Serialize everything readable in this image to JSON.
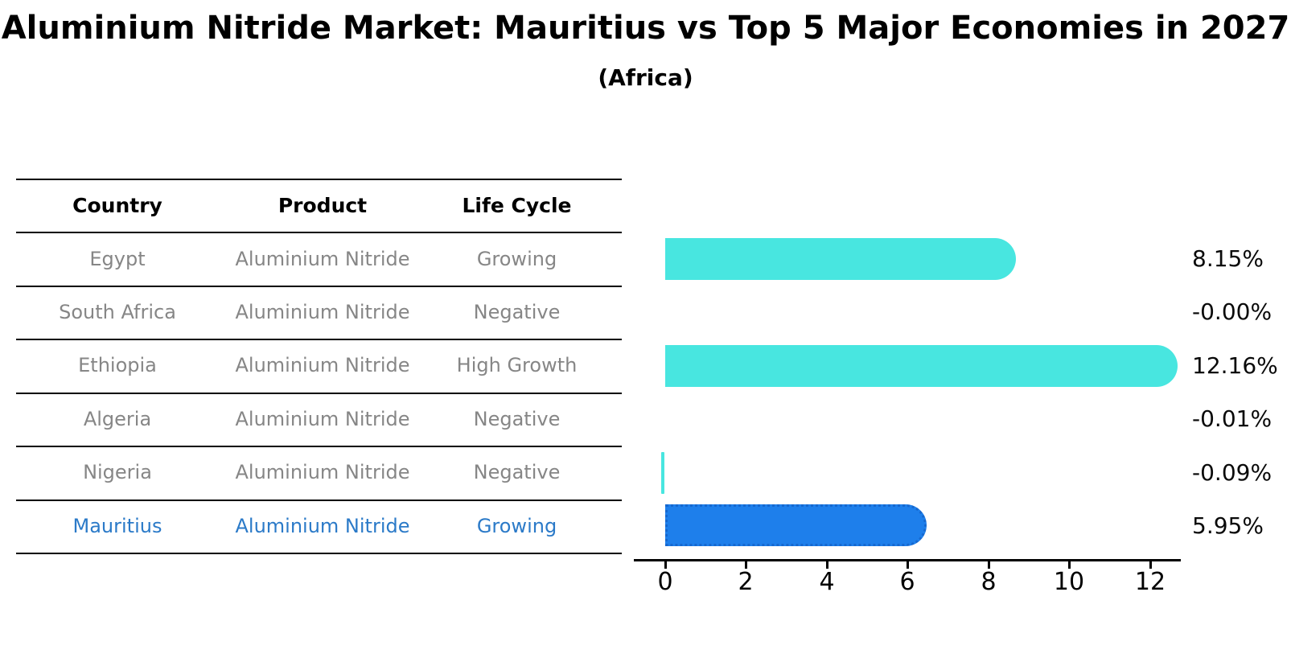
{
  "title": "Aluminium Nitride Market: Mauritius vs Top 5 Major Economies in 2027",
  "subtitle": "(Africa)",
  "table": {
    "headers": [
      "Country",
      "Product",
      "Life Cycle"
    ],
    "rows": [
      {
        "country": "Egypt",
        "product": "Aluminium Nitride",
        "life_cycle": "Growing",
        "highlight": false
      },
      {
        "country": "South Africa",
        "product": "Aluminium Nitride",
        "life_cycle": "Negative",
        "highlight": false
      },
      {
        "country": "Ethiopia",
        "product": "Aluminium Nitride",
        "life_cycle": "High Growth",
        "highlight": false
      },
      {
        "country": "Algeria",
        "product": "Aluminium Nitride",
        "life_cycle": "Negative",
        "highlight": false
      },
      {
        "country": "Nigeria",
        "product": "Aluminium Nitride",
        "life_cycle": "Negative",
        "highlight": false
      },
      {
        "country": "Mauritius",
        "product": "Aluminium Nitride",
        "life_cycle": "Growing",
        "highlight": true
      }
    ]
  },
  "chart_data": {
    "type": "bar",
    "orientation": "horizontal",
    "title": "Aluminium Nitride Market: Mauritius vs Top 5 Major Economies in 2027 (Africa)",
    "categories": [
      "Egypt",
      "South Africa",
      "Ethiopia",
      "Algeria",
      "Nigeria",
      "Mauritius"
    ],
    "values": [
      8.15,
      -0.0,
      12.16,
      -0.01,
      -0.09,
      5.95
    ],
    "value_labels": [
      "8.15%",
      "-0.00%",
      "12.16%",
      "-0.01%",
      "-0.09%",
      "5.95%"
    ],
    "highlight_index": 5,
    "x_ticks": [
      0,
      2,
      4,
      6,
      8,
      10,
      12
    ],
    "x_tick_labels": [
      "0",
      "2",
      "4",
      "6",
      "8",
      "10",
      "12"
    ],
    "xlim": [
      -0.78,
      12.76
    ],
    "xlabel": "",
    "ylabel": "",
    "grid": false,
    "legend": false,
    "unit": "percent"
  },
  "colors": {
    "bar_cyan": "#48e6e0",
    "bar_blue": "#1e7feb",
    "bar_blue_edge": "#1668cf",
    "highlight_text_blue": "#2b7ac8",
    "table_text_gray": "#868686",
    "axis_black": "#000000"
  }
}
